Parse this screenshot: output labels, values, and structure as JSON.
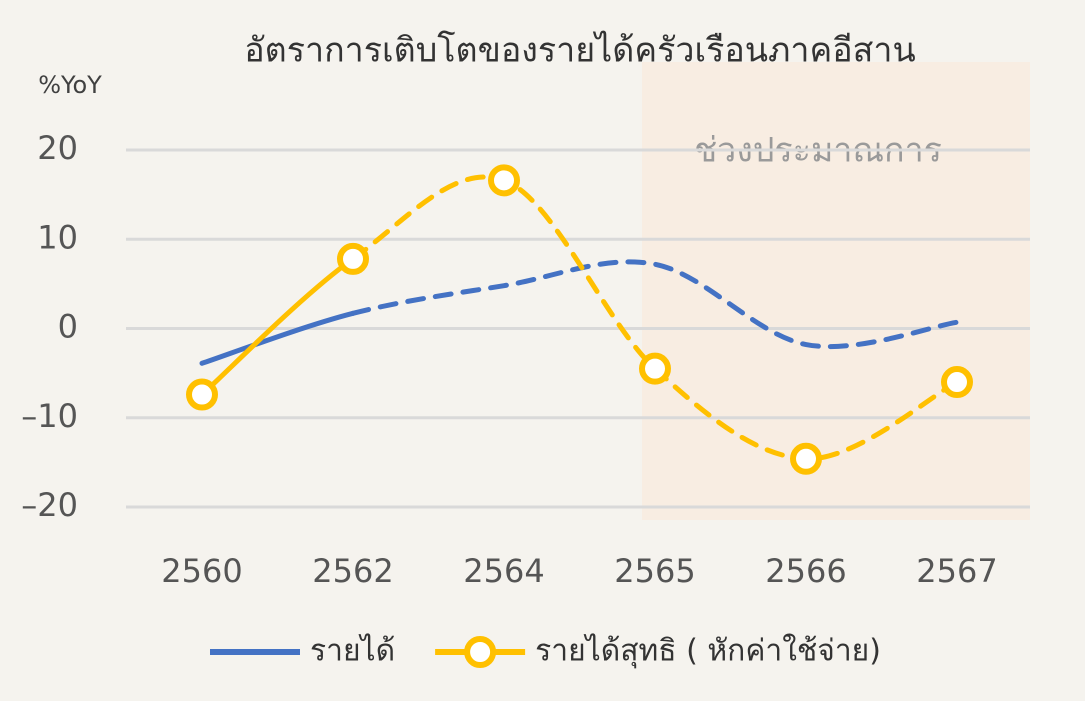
{
  "chart_data": {
    "type": "line",
    "title": "อัตราการเติบโตของรายได้ครัวเรือนภาคอีสาน",
    "y_label": "%YoY",
    "annotation": "ช่วงประมาณการ",
    "categories": [
      "2560",
      "2562",
      "2564",
      "2565",
      "2566",
      "2567"
    ],
    "series": [
      {
        "name": "รายได้",
        "color": "#4472c4",
        "values": [
          -3.9,
          1.7,
          4.8,
          7.2,
          -1.8,
          0.7
        ],
        "dash_from": 1,
        "markers": false
      },
      {
        "name": "รายได้สุทธิ ( หักค่าใช้จ่าย)",
        "color": "#ffc000",
        "values": [
          -7.4,
          7.8,
          16.6,
          -4.5,
          -14.6,
          -6.0
        ],
        "dash_from": 1,
        "markers": true
      }
    ],
    "ylim": [
      -20,
      20
    ],
    "yticks": [
      {
        "value": -20,
        "label": "–20"
      },
      {
        "value": -10,
        "label": "–10"
      },
      0,
      10,
      20
    ],
    "grid": true,
    "legend": "bottom"
  }
}
